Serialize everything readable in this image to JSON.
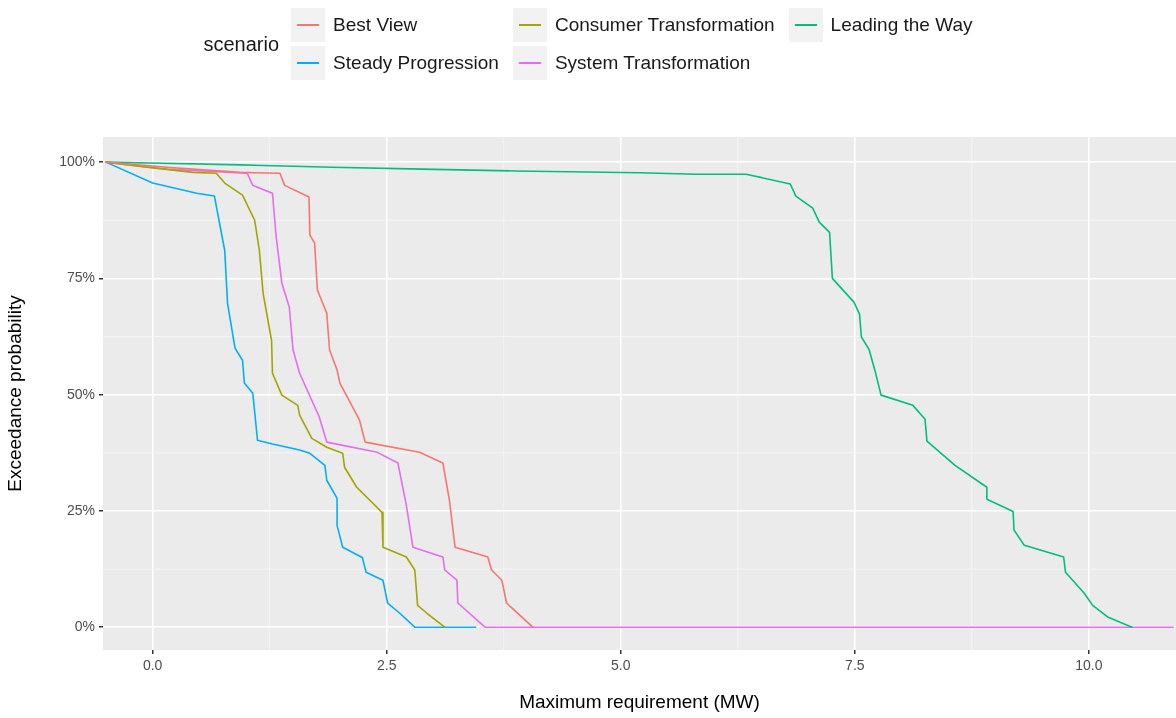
{
  "chart_data": {
    "type": "line",
    "xlabel": "Maximum requirement (MW)",
    "ylabel": "Exceedance probability",
    "legend_title": "scenario",
    "legend": "top",
    "grid": true,
    "marker": "none",
    "line_style": "solid",
    "xlim": [
      -0.53,
      10.93
    ],
    "ylim": [
      -4.9,
      105.4
    ],
    "xticks": [
      {
        "value": 0,
        "label": "0.0"
      },
      {
        "value": 2.5,
        "label": "2.5"
      },
      {
        "value": 5,
        "label": "5.0"
      },
      {
        "value": 7.5,
        "label": "7.5"
      },
      {
        "value": 10,
        "label": "10.0"
      }
    ],
    "yticks": [
      {
        "value": 0,
        "label": "0%"
      },
      {
        "value": 25,
        "label": "25%"
      },
      {
        "value": 50,
        "label": "50%"
      },
      {
        "value": 75,
        "label": "75%"
      },
      {
        "value": 100,
        "label": "100%"
      }
    ],
    "series": [
      {
        "name": "Best View",
        "color": "#f8766d",
        "x": [
          -0.5,
          0.15,
          0.93,
          1.36,
          1.41,
          1.67,
          1.68,
          1.73,
          1.76,
          1.86,
          1.89,
          1.97,
          2.0,
          2.21,
          2.27,
          2.85,
          3.1,
          3.17,
          3.23,
          3.58,
          3.62,
          3.73,
          3.78,
          4.06
        ],
        "values": [
          100,
          98.9,
          97.8,
          97.6,
          95,
          92.5,
          84.3,
          82.6,
          72.5,
          67.5,
          59.6,
          55.3,
          52.5,
          44.5,
          39.8,
          37.6,
          35.3,
          27.3,
          17.2,
          15.1,
          12.3,
          10.1,
          5.2,
          0
        ]
      },
      {
        "name": "Consumer Transformation",
        "color": "#a3a500",
        "x": [
          -0.5,
          -0.06,
          0.43,
          0.68,
          0.77,
          0.96,
          1.09,
          1.14,
          1.18,
          1.27,
          1.28,
          1.38,
          1.55,
          1.57,
          1.7,
          1.86,
          2.03,
          2.05,
          2.18,
          2.45,
          2.46,
          2.71,
          2.8,
          2.83,
          2.93,
          3.12
        ],
        "values": [
          100,
          98.9,
          97.8,
          97.6,
          95.5,
          92.9,
          87.5,
          81,
          71.8,
          61.7,
          54.6,
          49.9,
          47.7,
          45.6,
          40.6,
          38.7,
          37.4,
          34.4,
          30.1,
          24.7,
          17.2,
          15.1,
          12.3,
          4.7,
          3,
          0
        ]
      },
      {
        "name": "Leading the Way",
        "color": "#00bf7d",
        "x": [
          -0.5,
          -0.03,
          0.95,
          1.92,
          2.88,
          3.87,
          5.2,
          5.8,
          6.34,
          6.81,
          6.87,
          7.05,
          7.12,
          7.23,
          7.26,
          7.49,
          7.55,
          7.57,
          7.65,
          7.72,
          7.78,
          8.12,
          8.25,
          8.27,
          8.57,
          8.91,
          8.91,
          9.19,
          9.2,
          9.31,
          9.73,
          9.75,
          9.95,
          10.04,
          10.2,
          10.46
        ],
        "values": [
          100,
          99.8,
          99.4,
          98.9,
          98.5,
          98.1,
          97.7,
          97.4,
          97.4,
          95.3,
          92.7,
          90.1,
          87.1,
          84.9,
          75,
          69.9,
          67.3,
          62.4,
          59.8,
          54.8,
          49.9,
          47.7,
          44.7,
          40,
          34.8,
          30.1,
          27.5,
          24.9,
          20.9,
          17.6,
          15.1,
          11.8,
          7.3,
          4.7,
          2.2,
          0
        ]
      },
      {
        "name": "Steady Progression",
        "color": "#00b0f6",
        "x": [
          -0.5,
          0,
          0.47,
          0.66,
          0.77,
          0.8,
          0.88,
          0.96,
          0.98,
          1.07,
          1.12,
          1.28,
          1.57,
          1.68,
          1.84,
          1.86,
          1.97,
          1.97,
          2.03,
          2.24,
          2.28,
          2.46,
          2.51,
          2.64,
          2.8,
          3.45
        ],
        "values": [
          100,
          95.5,
          93.3,
          92.7,
          81,
          69.7,
          60,
          57.4,
          52.5,
          50.3,
          40.2,
          39.4,
          38.1,
          37.4,
          34.8,
          31.6,
          27.7,
          21.9,
          17.2,
          15,
          11.8,
          10.1,
          5.2,
          3,
          0,
          0
        ]
      },
      {
        "name": "System Transformation",
        "color": "#e76bf3",
        "x": [
          -0.5,
          0.15,
          1.01,
          1.07,
          1.28,
          1.32,
          1.38,
          1.46,
          1.5,
          1.57,
          1.78,
          1.86,
          2.4,
          2.62,
          2.71,
          2.78,
          3.1,
          3.12,
          3.25,
          3.26,
          3.55,
          10.9
        ],
        "values": [
          100,
          98.5,
          97.6,
          95,
          93.3,
          83.9,
          74,
          68.8,
          59.6,
          54.6,
          45.2,
          39.8,
          37.6,
          35.3,
          26.2,
          17.2,
          15.1,
          12.3,
          10.1,
          5.2,
          0,
          0
        ]
      }
    ]
  }
}
